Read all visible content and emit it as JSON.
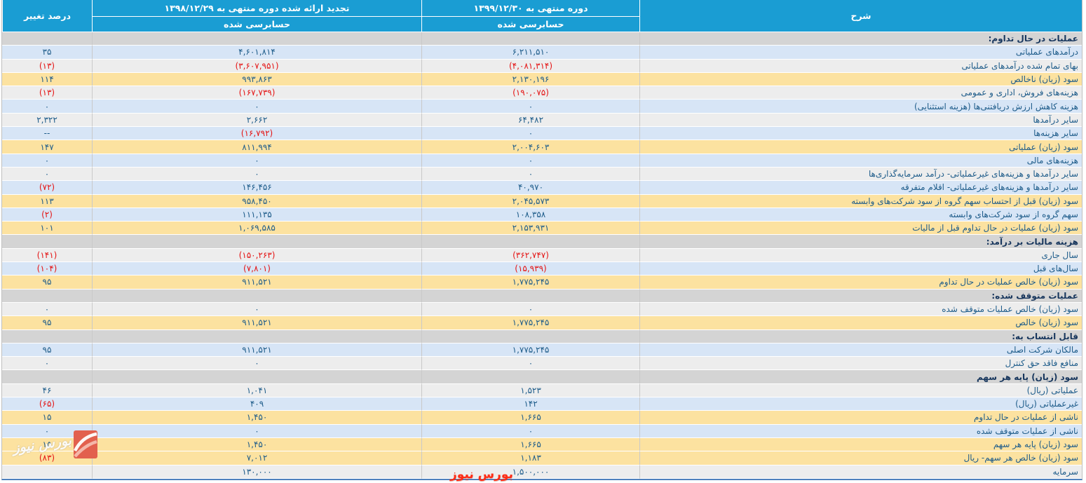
{
  "table": {
    "columns": {
      "description": "شرح",
      "current_period": {
        "title": "دوره منتهی به ۱۳۹۹/۱۲/۳۰",
        "subtitle": "حسابرسی شده"
      },
      "restated_period": {
        "title": "تجدید ارائه شده دوره منتهی به ۱۳۹۸/۱۲/۲۹",
        "subtitle": "حسابرسی شده"
      },
      "percent_change": "درصد تغییر"
    },
    "rows": [
      {
        "type": "section",
        "label": "عملیات در حال تداوم:"
      },
      {
        "type": "data",
        "highlight": "blue",
        "label": "درآمدهای عملیاتی",
        "current": "۶,۲۱۱,۵۱۰",
        "restated": "۴,۶۰۱,۸۱۴",
        "percent": "۳۵"
      },
      {
        "type": "data",
        "highlight": "plain",
        "label": "بهای تمام شده درآمدهای عملیاتی",
        "current": "(۴,۰۸۱,۳۱۴)",
        "restated": "(۳,۶۰۷,۹۵۱)",
        "percent": "(۱۳)"
      },
      {
        "type": "data",
        "highlight": "orange",
        "label": "سود (زیان) ناخالص",
        "current": "۲,۱۳۰,۱۹۶",
        "restated": "۹۹۳,۸۶۳",
        "percent": "۱۱۴"
      },
      {
        "type": "data",
        "highlight": "plain",
        "label": "هزینه‌های فروش، اداری و عمومی",
        "current": "(۱۹۰,۰۷۵)",
        "restated": "(۱۶۷,۷۳۹)",
        "percent": "(۱۳)"
      },
      {
        "type": "data",
        "highlight": "blue",
        "label": "هزینه کاهش ارزش دریافتنی‌ها (هزینه استثنایی)",
        "current": "۰",
        "restated": "۰",
        "percent": "۰"
      },
      {
        "type": "data",
        "highlight": "plain",
        "label": "سایر درآمدها",
        "current": "۶۴,۴۸۲",
        "restated": "۲,۶۶۲",
        "percent": "۲,۳۲۲"
      },
      {
        "type": "data",
        "highlight": "blue",
        "label": "سایر هزینه‌ها",
        "current": "۰",
        "restated": "(۱۶,۷۹۲)",
        "percent": "--"
      },
      {
        "type": "data",
        "highlight": "orange",
        "label": "سود (زیان) عملیاتی",
        "current": "۲,۰۰۴,۶۰۳",
        "restated": "۸۱۱,۹۹۴",
        "percent": "۱۴۷"
      },
      {
        "type": "data",
        "highlight": "blue",
        "label": "هزینه‌های مالی",
        "current": "۰",
        "restated": "۰",
        "percent": "۰"
      },
      {
        "type": "data",
        "highlight": "plain",
        "label": "سایر درآمدها و هزینه‌های غیرعملیاتی- درآمد سرمایه‌گذاری‌ها",
        "current": "۰",
        "restated": "۰",
        "percent": "۰"
      },
      {
        "type": "data",
        "highlight": "blue",
        "label": "سایر درآمدها و هزینه‌های غیرعملیاتی- اقلام متفرقه",
        "current": "۴۰,۹۷۰",
        "restated": "۱۴۶,۴۵۶",
        "percent": "(۷۲)"
      },
      {
        "type": "data",
        "highlight": "orange",
        "label": "سود (زیان) قبل از احتساب سهم گروه از سود شرکت‌های وابسته",
        "current": "۲,۰۴۵,۵۷۳",
        "restated": "۹۵۸,۴۵۰",
        "percent": "۱۱۳"
      },
      {
        "type": "data",
        "highlight": "blue",
        "label": "سهم گروه از سود شرکت‌های وابسته",
        "current": "۱۰۸,۳۵۸",
        "restated": "۱۱۱,۱۳۵",
        "percent": "(۲)"
      },
      {
        "type": "data",
        "highlight": "orange",
        "label": "سود (زیان) عملیات در حال تداوم قبل از مالیات",
        "current": "۲,۱۵۳,۹۳۱",
        "restated": "۱,۰۶۹,۵۸۵",
        "percent": "۱۰۱"
      },
      {
        "type": "section",
        "label": "هزینه مالیات بر درآمد:"
      },
      {
        "type": "data",
        "highlight": "plain",
        "label": "سال جاری",
        "current": "(۳۶۲,۷۴۷)",
        "restated": "(۱۵۰,۲۶۳)",
        "percent": "(۱۴۱)"
      },
      {
        "type": "data",
        "highlight": "blue",
        "label": "سال‌های قبل",
        "current": "(۱۵,۹۳۹)",
        "restated": "(۷,۸۰۱)",
        "percent": "(۱۰۴)"
      },
      {
        "type": "data",
        "highlight": "orange",
        "label": "سود (زیان) خالص عملیات در حال تداوم",
        "current": "۱,۷۷۵,۲۴۵",
        "restated": "۹۱۱,۵۲۱",
        "percent": "۹۵"
      },
      {
        "type": "section",
        "label": "عملیات متوقف شده:"
      },
      {
        "type": "data",
        "highlight": "plain",
        "label": "سود (زیان) خالص عملیات متوقف شده",
        "current": "۰",
        "restated": "۰",
        "percent": "۰"
      },
      {
        "type": "data",
        "highlight": "orange",
        "label": "سود (زیان) خالص",
        "current": "۱,۷۷۵,۲۴۵",
        "restated": "۹۱۱,۵۲۱",
        "percent": "۹۵"
      },
      {
        "type": "section",
        "label": "قابل انتساب به:"
      },
      {
        "type": "data",
        "highlight": "blue",
        "label": "مالکان شرکت اصلی",
        "current": "۱,۷۷۵,۲۴۵",
        "restated": "۹۱۱,۵۲۱",
        "percent": "۹۵"
      },
      {
        "type": "data",
        "highlight": "plain",
        "label": "منافع فاقد حق کنترل",
        "current": "۰",
        "restated": "۰",
        "percent": "۰"
      },
      {
        "type": "section",
        "label": "سود (زیان) پایه هر سهم"
      },
      {
        "type": "data",
        "highlight": "plain",
        "label": "عملیاتی (ریال)",
        "current": "۱,۵۲۳",
        "restated": "۱,۰۴۱",
        "percent": "۴۶"
      },
      {
        "type": "data",
        "highlight": "blue",
        "label": "غیرعملیاتی (ریال)",
        "current": "۱۴۲",
        "restated": "۴۰۹",
        "percent": "(۶۵)"
      },
      {
        "type": "data",
        "highlight": "orange",
        "label": "ناشی از عملیات در حال تداوم",
        "current": "۱,۶۶۵",
        "restated": "۱,۴۵۰",
        "percent": "۱۵"
      },
      {
        "type": "data",
        "highlight": "blue",
        "label": "ناشی از عملیات متوقف شده",
        "current": "۰",
        "restated": "۰",
        "percent": "۰"
      },
      {
        "type": "data",
        "highlight": "orange",
        "label": "سود (زیان) پایه هر سهم",
        "current": "۱,۶۶۵",
        "restated": "۱,۴۵۰",
        "percent": "۱۵"
      },
      {
        "type": "data",
        "highlight": "orange",
        "label": "سود (زیان) خالص هر سهم- ریال",
        "current": "۱,۱۸۳",
        "restated": "۷,۰۱۲",
        "percent": "(۸۳)"
      },
      {
        "type": "data",
        "highlight": "plain",
        "label": "سرمایه",
        "current": "۱,۵۰۰,۰۰۰",
        "restated": "۱۳۰,۰۰۰",
        "percent": ""
      }
    ]
  },
  "watermark": {
    "logo_text": "بورس نیوز",
    "bottom_text": "بورس نیوز"
  },
  "colors": {
    "header_bg": "#1a9dd3",
    "row_blue": "#d7e5f6",
    "row_plain": "#ededed",
    "row_orange": "#fce2a0",
    "row_section": "#d4d4d4",
    "text_main": "#1e5c8a",
    "text_section": "#17365d",
    "text_negative": "#e41414",
    "bottom_border": "#4f81bd",
    "watermark_red": "#ff2d16"
  }
}
